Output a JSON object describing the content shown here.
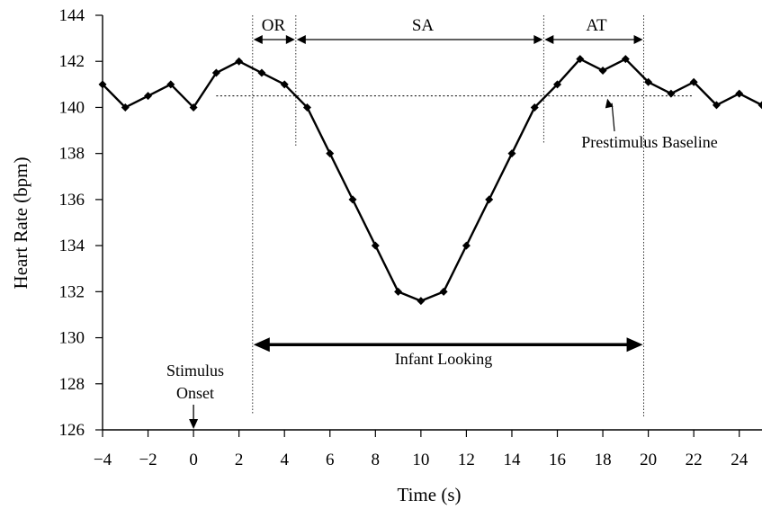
{
  "chart_data": {
    "type": "line",
    "xlabel": "Time (s)",
    "ylabel": "Heart Rate (bpm)",
    "xlim": [
      -4,
      25
    ],
    "ylim": [
      126,
      144
    ],
    "x_ticks": [
      -4,
      -2,
      0,
      2,
      4,
      6,
      8,
      10,
      12,
      14,
      16,
      18,
      20,
      22,
      24
    ],
    "x_tick_labels": [
      "−4",
      "−2",
      "0",
      "2",
      "4",
      "6",
      "8",
      "10",
      "12",
      "14",
      "16",
      "18",
      "20",
      "22",
      "24"
    ],
    "y_ticks": [
      126,
      128,
      130,
      132,
      134,
      136,
      138,
      140,
      142,
      144
    ],
    "y_tick_labels": [
      "126",
      "128",
      "130",
      "132",
      "134",
      "136",
      "138",
      "140",
      "142",
      "144"
    ],
    "grid": false,
    "series": [
      {
        "x": [
          -4,
          -3,
          -2,
          -1,
          0,
          1,
          2,
          3,
          4,
          5,
          6,
          7,
          8,
          9,
          10,
          11,
          12,
          13,
          14,
          15,
          16,
          17,
          18,
          19,
          20,
          21,
          22,
          23,
          24,
          25
        ],
        "y": [
          141,
          140,
          140.5,
          141,
          140,
          141.5,
          142,
          141.5,
          141,
          140,
          138,
          136,
          134,
          132,
          131.6,
          132,
          134,
          136,
          138,
          140,
          141,
          142.1,
          141.6,
          142.1,
          141.1,
          140.6,
          141.1,
          140.1,
          140.6,
          140.1
        ]
      }
    ],
    "baseline": {
      "value": 140.5,
      "x_range": [
        1,
        22
      ],
      "label": "Prestimulus Baseline"
    },
    "phases": [
      {
        "label": "OR",
        "x_range": [
          2.6,
          4.5
        ]
      },
      {
        "label": "SA",
        "x_range": [
          4.5,
          15.4
        ]
      },
      {
        "label": "AT",
        "x_range": [
          15.4,
          19.8
        ]
      }
    ],
    "looking": {
      "label": "Infant Looking",
      "x_range": [
        2.6,
        19.8
      ],
      "y": 129.7
    },
    "stimulus_onset": {
      "line1": "Stimulus",
      "line2": "Onset",
      "x": 0
    }
  }
}
